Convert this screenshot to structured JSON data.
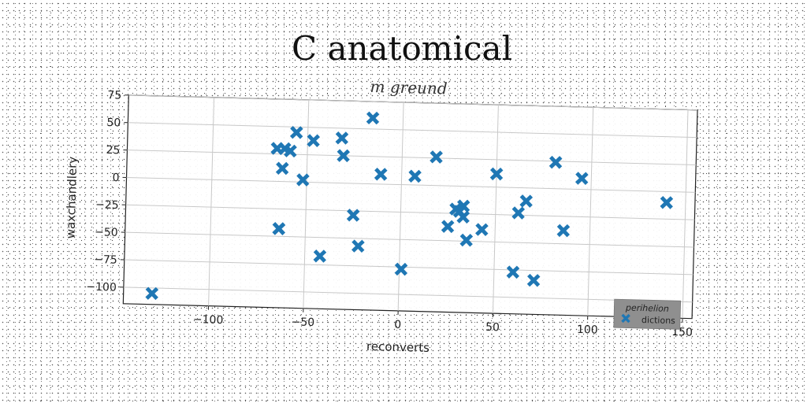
{
  "chart_data": {
    "type": "scatter",
    "title": "C anatomical",
    "subtitle": "m greund",
    "xlabel": "reconverts",
    "ylabel": "waxchandlery",
    "xlim": [
      -145,
      155
    ],
    "ylim": [
      -115,
      75
    ],
    "xticks": [
      -100,
      -50,
      0,
      50,
      100,
      150
    ],
    "yticks": [
      -100,
      -75,
      -50,
      -25,
      0,
      25,
      50,
      75
    ],
    "xtick_labels": [
      "−100",
      "−50",
      "0",
      "50",
      "100",
      "150"
    ],
    "ytick_labels": [
      "−100",
      "−75",
      "−50",
      "−25",
      "0",
      "25",
      "50",
      "75"
    ],
    "grid": true,
    "legend": {
      "title": "perihelion",
      "placement": "lower-right"
    },
    "series": [
      {
        "name": "dictions",
        "color": "#1f77b4",
        "marker": "X",
        "x": [
          -130,
          -66,
          -63,
          -62,
          -59,
          -56,
          -52,
          -47,
          -64,
          -64,
          -42,
          -32,
          -31,
          -25,
          -22,
          -16,
          -11,
          1,
          7,
          18,
          25,
          29,
          31,
          33,
          33,
          35,
          43,
          50,
          60,
          62,
          66,
          71,
          81,
          86,
          95,
          140
        ],
        "y": [
          -105,
          30,
          12,
          30,
          28,
          45,
          2,
          38,
          -43,
          -43,
          -67,
          41,
          25,
          -29,
          -57,
          60,
          9,
          -77,
          8,
          26,
          -37,
          -21,
          -23,
          -18,
          -28,
          -49,
          -39,
          12,
          -77,
          -23,
          -12,
          -84,
          24,
          -38,
          10,
          -10
        ]
      }
    ]
  }
}
